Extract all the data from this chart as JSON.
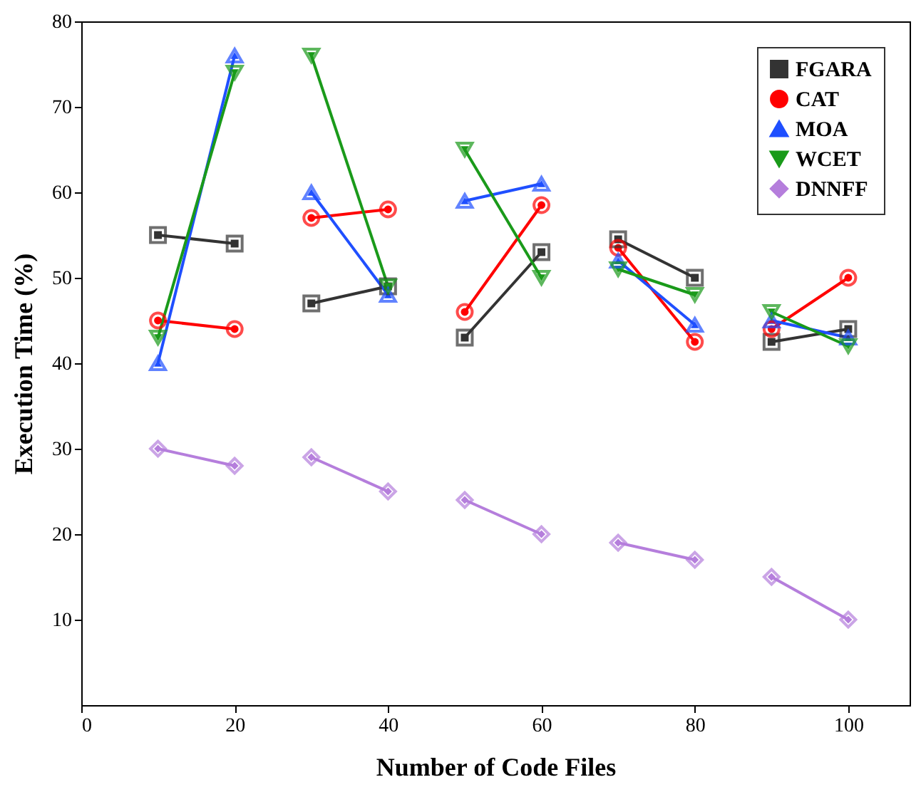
{
  "chart_data": {
    "type": "line",
    "xlabel": "Number of Code Files",
    "ylabel": "Execution Time (%)",
    "x": [
      10,
      20,
      25,
      30,
      40,
      45,
      50,
      60,
      65,
      70,
      80,
      85,
      90,
      100
    ],
    "xlim": [
      0,
      108
    ],
    "xticks": [
      0,
      20,
      40,
      60,
      80,
      100
    ],
    "ylim": [
      0,
      80
    ],
    "yticks": [
      10,
      20,
      30,
      40,
      50,
      60,
      70,
      80
    ],
    "grid": false,
    "legend": "top right",
    "series": [
      {
        "name": "FGARA",
        "color": "#333333",
        "marker": "square",
        "values": [
          55,
          54,
          null,
          47,
          49,
          null,
          43,
          53,
          null,
          54.5,
          50,
          null,
          42.5,
          44
        ]
      },
      {
        "name": "CAT",
        "color": "#ff0000",
        "marker": "circle",
        "values": [
          45,
          44,
          null,
          57,
          58,
          null,
          46,
          58.5,
          null,
          53.5,
          42.5,
          null,
          44,
          50
        ]
      },
      {
        "name": "MOA",
        "color": "#1f4fff",
        "marker": "triangle",
        "values": [
          40,
          76,
          null,
          60,
          48,
          null,
          59,
          61,
          null,
          52,
          44.5,
          null,
          45,
          43
        ]
      },
      {
        "name": "WCET",
        "color": "#1a9a1a",
        "marker": "triangle-down",
        "values": [
          43,
          74,
          null,
          76,
          49,
          null,
          65,
          50,
          null,
          51,
          48,
          null,
          46,
          42
        ]
      },
      {
        "name": "DNNFF",
        "color": "#b57edc",
        "marker": "diamond",
        "values": [
          30,
          28,
          null,
          29,
          25,
          null,
          24,
          20,
          null,
          19,
          17,
          null,
          15,
          10
        ]
      }
    ]
  }
}
